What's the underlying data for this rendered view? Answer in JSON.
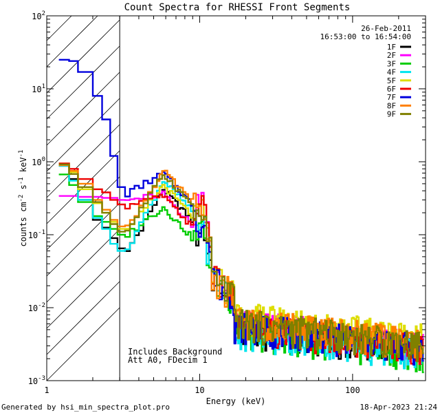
{
  "chart_data": {
    "type": "line",
    "title": "Count Spectra for RHESSI Front Segments",
    "xlabel": "Energy (keV)",
    "ylabel_parts": {
      "base": "counts cm",
      "exp1": "-2",
      "mid": " s",
      "exp2": "-1",
      "unit": " keV",
      "exp3": "-1"
    },
    "xscale": "log",
    "yscale": "log",
    "xlim": [
      1,
      300
    ],
    "ylim": [
      0.001,
      100
    ],
    "x_ticks": [
      {
        "value": 1,
        "label": "1"
      },
      {
        "value": 10,
        "label": "10"
      },
      {
        "value": 100,
        "label": "100"
      }
    ],
    "y_ticks": [
      {
        "value": 0.001,
        "base": "10",
        "exp": "-3"
      },
      {
        "value": 0.01,
        "base": "10",
        "exp": "-2"
      },
      {
        "value": 0.1,
        "base": "10",
        "exp": "-1"
      },
      {
        "value": 1,
        "base": "10",
        "exp": "0"
      },
      {
        "value": 10,
        "base": "10",
        "exp": "1"
      },
      {
        "value": 100,
        "base": "10",
        "exp": "2"
      }
    ],
    "date": "26-Feb-2011",
    "time_range": "16:53:00 to 16:54:00",
    "annotations": [
      "Includes Background",
      "Att A0, FDecim 1"
    ],
    "hatched_region_keV": [
      1,
      3
    ],
    "series": [
      {
        "name": "1F",
        "color": "#000000",
        "low": [
          0.88,
          0.58,
          0.3,
          0.16,
          0.125,
          0.09,
          0.065,
          0.052
        ],
        "peak": 0.42,
        "p12": 0.08,
        "tail": 0.005
      },
      {
        "name": "2F",
        "color": "#ff00ff",
        "low": [
          0.34,
          0.34,
          0.33,
          0.33,
          0.32,
          0.32,
          0.3,
          0.29
        ],
        "peak": 0.36,
        "p12": 0.22,
        "tail": 0.006
      },
      {
        "name": "3F",
        "color": "#00cc00",
        "low": [
          0.67,
          0.48,
          0.28,
          0.18,
          0.15,
          0.12,
          0.1,
          0.095
        ],
        "peak": 0.24,
        "p12": 0.075,
        "tail": 0.0045
      },
      {
        "name": "4F",
        "color": "#00e5ee",
        "low": [
          0.88,
          0.55,
          0.3,
          0.17,
          0.12,
          0.075,
          0.06,
          0.055
        ],
        "peak": 0.56,
        "p12": 0.1,
        "tail": 0.0045
      },
      {
        "name": "5F",
        "color": "#dddd00",
        "low": [
          0.95,
          0.72,
          0.42,
          0.27,
          0.2,
          0.15,
          0.12,
          0.1
        ],
        "peak": 0.48,
        "p12": 0.14,
        "tail": 0.0075
      },
      {
        "name": "6F",
        "color": "#ee0000",
        "low": [
          0.95,
          0.8,
          0.58,
          0.42,
          0.38,
          0.3,
          0.26,
          0.24
        ],
        "peak": 0.34,
        "p12": 0.2,
        "tail": 0.0055
      },
      {
        "name": "7F",
        "color": "#0000dd",
        "low": [
          25,
          24,
          17,
          8,
          3.8,
          1.2,
          0.45,
          0.35
        ],
        "peak": 0.7,
        "p12": 0.11,
        "tail": 0.0055
      },
      {
        "name": "8F",
        "color": "#ff8000",
        "low": [
          0.9,
          0.75,
          0.5,
          0.3,
          0.22,
          0.16,
          0.13,
          0.11
        ],
        "peak": 0.75,
        "p12": 0.14,
        "tail": 0.0065
      },
      {
        "name": "9F",
        "color": "#808000",
        "low": [
          0.92,
          0.68,
          0.45,
          0.28,
          0.2,
          0.14,
          0.11,
          0.1
        ],
        "peak": 0.68,
        "p12": 0.12,
        "tail": 0.006
      }
    ]
  },
  "footer": {
    "generated_by": "Generated by hsi_min_spectra_plot.pro",
    "timestamp": "18-Apr-2023 21:24"
  }
}
